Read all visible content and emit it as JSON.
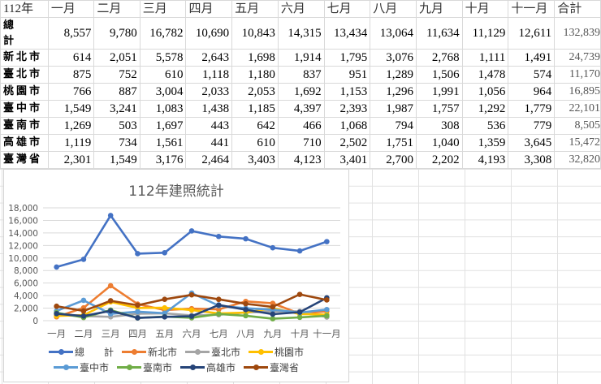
{
  "table": {
    "corner": "112年",
    "months": [
      "一月",
      "二月",
      "三月",
      "四月",
      "五月",
      "六月",
      "七月",
      "八月",
      "九月",
      "十月",
      "十一月"
    ],
    "total_header": "合計",
    "rows": [
      {
        "label": "總\n計",
        "label_top": "總",
        "label_bottom": "計",
        "values": [
          "8,557",
          "9,780",
          "16,782",
          "10,690",
          "10,843",
          "14,315",
          "13,434",
          "13,064",
          "11,634",
          "11,129",
          "12,611"
        ],
        "total": "132,839"
      },
      {
        "label": "新北市",
        "values": [
          "614",
          "2,051",
          "5,578",
          "2,643",
          "1,698",
          "1,914",
          "1,795",
          "3,076",
          "2,768",
          "1,111",
          "1,491"
        ],
        "total": "24,739"
      },
      {
        "label": "臺北市",
        "values": [
          "875",
          "752",
          "610",
          "1,118",
          "1,180",
          "837",
          "951",
          "1,289",
          "1,506",
          "1,478",
          "574"
        ],
        "total": "11,170"
      },
      {
        "label": "桃園市",
        "values": [
          "766",
          "887",
          "3,004",
          "2,033",
          "2,053",
          "1,692",
          "1,153",
          "1,296",
          "1,991",
          "1,056",
          "964"
        ],
        "total": "16,895"
      },
      {
        "label": "臺中市",
        "values": [
          "1,549",
          "3,241",
          "1,083",
          "1,438",
          "1,185",
          "4,397",
          "2,393",
          "1,987",
          "1,757",
          "1,292",
          "1,779"
        ],
        "total": "22,101"
      },
      {
        "label": "臺南市",
        "values": [
          "1,269",
          "503",
          "1,697",
          "443",
          "642",
          "466",
          "1,068",
          "794",
          "308",
          "536",
          "779"
        ],
        "total": "8,505"
      },
      {
        "label": "高雄市",
        "values": [
          "1,119",
          "734",
          "1,561",
          "441",
          "610",
          "710",
          "2,502",
          "1,751",
          "1,040",
          "1,359",
          "3,645"
        ],
        "total": "15,472"
      },
      {
        "label": "臺灣省",
        "values": [
          "2,301",
          "1,549",
          "3,176",
          "2,464",
          "3,403",
          "4,123",
          "3,401",
          "2,700",
          "2,202",
          "4,193",
          "3,308"
        ],
        "total": "32,820"
      }
    ]
  },
  "chart_data": {
    "type": "line",
    "title": "112年建照統計",
    "xlabel": "",
    "ylabel": "",
    "categories": [
      "一月",
      "二月",
      "三月",
      "四月",
      "五月",
      "六月",
      "七月",
      "八月",
      "九月",
      "十月",
      "十一月"
    ],
    "ylim": [
      0,
      18000
    ],
    "yticks": [
      0,
      2000,
      4000,
      6000,
      8000,
      10000,
      12000,
      14000,
      16000,
      18000
    ],
    "ytick_labels": [
      "0",
      "2,000",
      "4,000",
      "6,000",
      "8,000",
      "10,000",
      "12,000",
      "14,000",
      "16,000",
      "18,000"
    ],
    "grid": true,
    "legend_position": "bottom",
    "series": [
      {
        "name": "總　　計",
        "color": "#4472C4",
        "values": [
          8557,
          9780,
          16782,
          10690,
          10843,
          14315,
          13434,
          13064,
          11634,
          11129,
          12611
        ]
      },
      {
        "name": "新北市",
        "color": "#ED7D31",
        "values": [
          614,
          2051,
          5578,
          2643,
          1698,
          1914,
          1795,
          3076,
          2768,
          1111,
          1491
        ]
      },
      {
        "name": "臺北市",
        "color": "#A5A5A5",
        "values": [
          875,
          752,
          610,
          1118,
          1180,
          837,
          951,
          1289,
          1506,
          1478,
          574
        ]
      },
      {
        "name": "桃園市",
        "color": "#FFC000",
        "values": [
          766,
          887,
          3004,
          2033,
          2053,
          1692,
          1153,
          1296,
          1991,
          1056,
          964
        ]
      },
      {
        "name": "臺中市",
        "color": "#5B9BD5",
        "values": [
          1549,
          3241,
          1083,
          1438,
          1185,
          4397,
          2393,
          1987,
          1757,
          1292,
          1779
        ]
      },
      {
        "name": "臺南市",
        "color": "#70AD47",
        "values": [
          1269,
          503,
          1697,
          443,
          642,
          466,
          1068,
          794,
          308,
          536,
          779
        ]
      },
      {
        "name": "高雄市",
        "color": "#264478",
        "values": [
          1119,
          734,
          1561,
          441,
          610,
          710,
          2502,
          1751,
          1040,
          1359,
          3645
        ]
      },
      {
        "name": "臺灣省",
        "color": "#9E480E",
        "values": [
          2301,
          1549,
          3176,
          2464,
          3403,
          4123,
          3401,
          2700,
          2202,
          4193,
          3308
        ]
      }
    ]
  }
}
